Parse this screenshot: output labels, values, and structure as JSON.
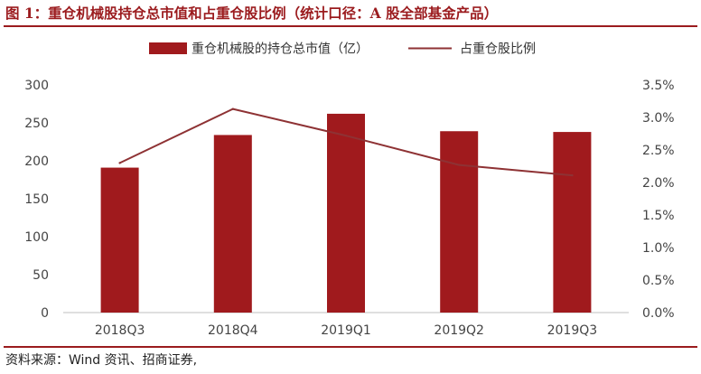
{
  "figure": {
    "title": "图 1：重仓机械股持仓总市值和占重仓股比例（统计口径：A 股全部基金产品）",
    "source": "资料来源：Wind 资讯、招商证券,"
  },
  "chart_data": {
    "type": "bar",
    "categories": [
      "2018Q3",
      "2018Q4",
      "2019Q1",
      "2019Q2",
      "2019Q3"
    ],
    "series": [
      {
        "name": "重仓机械股的持仓总市值（亿）",
        "type": "bar",
        "axis": "left",
        "color": "#a01a1d",
        "values": [
          191,
          234,
          262,
          239,
          238
        ]
      },
      {
        "name": "占重仓股比例",
        "type": "line",
        "axis": "right",
        "color": "#8e3234",
        "values": [
          2.3,
          3.13,
          2.72,
          2.27,
          2.11
        ]
      }
    ],
    "y_left": {
      "ylim": [
        0,
        300
      ],
      "ticks": [
        0,
        50,
        100,
        150,
        200,
        250,
        300
      ],
      "tick_labels": [
        "0",
        "50",
        "100",
        "150",
        "200",
        "250",
        "300"
      ]
    },
    "y_right": {
      "ylim": [
        0,
        3.5
      ],
      "ticks": [
        0,
        0.5,
        1.0,
        1.5,
        2.0,
        2.5,
        3.0,
        3.5
      ],
      "tick_labels": [
        "0.0%",
        "0.5%",
        "1.0%",
        "1.5%",
        "2.0%",
        "2.5%",
        "3.0%",
        "3.5%"
      ]
    },
    "grid": false,
    "legend_position": "top-center"
  }
}
